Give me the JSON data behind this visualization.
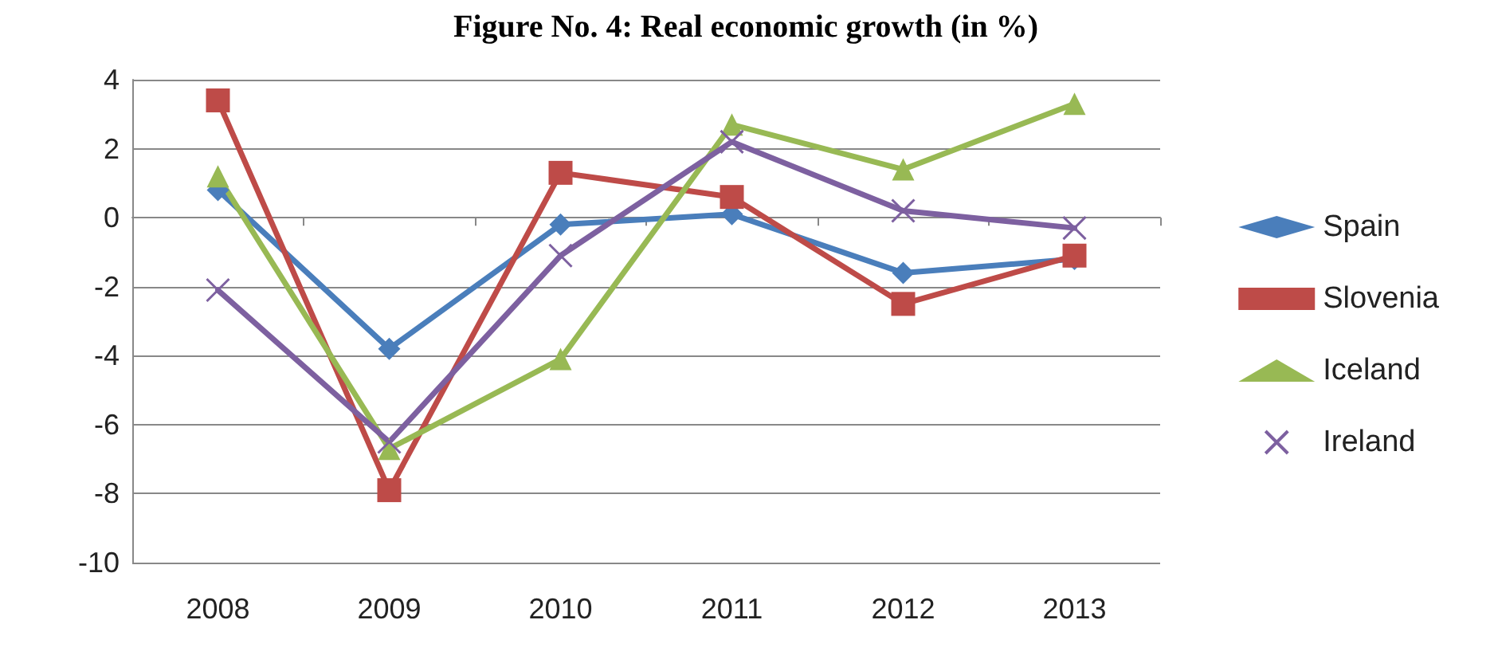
{
  "chart_data": {
    "type": "line",
    "title": "Figure No. 4: Real economic growth (in %)",
    "categories": [
      "2008",
      "2009",
      "2010",
      "2011",
      "2012",
      "2013"
    ],
    "series": [
      {
        "name": "Spain",
        "color": "#4a7ebb",
        "marker": "diamond",
        "values": [
          0.8,
          -3.8,
          -0.2,
          0.1,
          -1.6,
          -1.2
        ]
      },
      {
        "name": "Slovenia",
        "color": "#be4b48",
        "marker": "square",
        "values": [
          3.4,
          -7.9,
          1.3,
          0.6,
          -2.5,
          -1.1
        ]
      },
      {
        "name": "Iceland",
        "color": "#98b954",
        "marker": "triangle",
        "values": [
          1.2,
          -6.7,
          -4.1,
          2.7,
          1.4,
          3.3
        ]
      },
      {
        "name": "Ireland",
        "color": "#7d60a0",
        "marker": "cross",
        "values": [
          -2.1,
          -6.5,
          -1.1,
          2.2,
          0.2,
          -0.3
        ]
      }
    ],
    "ylim": [
      -10,
      4
    ],
    "yticks": [
      -10,
      -8,
      -6,
      -4,
      -2,
      0,
      2,
      4
    ],
    "grid": "y",
    "legend": "right",
    "line_style": "solid"
  }
}
